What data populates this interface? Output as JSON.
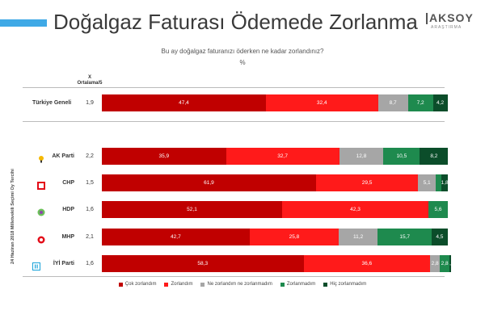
{
  "header": {
    "title": "Doğalgaz Faturası Ödemede Zorlanma",
    "logo_main": "AKSOY",
    "logo_sub": "ARAŞTIRMA"
  },
  "question": {
    "text": "Bu ay doğalgaz faturanızı öderken ne kadar zorlandınız?",
    "unit": "%"
  },
  "column_header": {
    "line1": "X",
    "line2": "Ortalama/5"
  },
  "vertical_label": "24 Haziran 2018 Milletvekili Seçimi Oy Tercihi",
  "colors": {
    "cok_zorlandim": "#c00000",
    "zorlandim": "#ff1a1a",
    "ne_ne": "#a6a6a6",
    "zorlanmadim": "#1e8a4e",
    "hic_zorlanmadim": "#0b4d2a"
  },
  "legend": [
    "Çok zorlandım",
    "Zorlandım",
    "Ne zorlandım ne zorlanmadım",
    "Zorlanmadım",
    "Hiç zorlanmadım"
  ],
  "rows": [
    {
      "label": "Türkiye Geneli",
      "mean": "1,9",
      "values": [
        "47,4",
        "32,4",
        "8,7",
        "7,2",
        "4,2"
      ]
    },
    {
      "label": "AK Parti",
      "mean": "2,2",
      "values": [
        "35,9",
        "32,7",
        "12,8",
        "10,5",
        "8,2"
      ]
    },
    {
      "label": "CHP",
      "mean": "1,5",
      "values": [
        "61,9",
        "29,5",
        "5,1",
        "",
        "1,8"
      ]
    },
    {
      "label": "HDP",
      "mean": "1,6",
      "values": [
        "52,1",
        "42,3",
        "",
        "5,6",
        ""
      ]
    },
    {
      "label": "MHP",
      "mean": "2,1",
      "values": [
        "42,7",
        "25,8",
        "11,2",
        "15,7",
        "4,5"
      ]
    },
    {
      "label": "İYİ Parti",
      "mean": "1,6",
      "values": [
        "58,3",
        "36,6",
        "2,8",
        "2,8",
        "0,4"
      ]
    }
  ],
  "chart_data": {
    "type": "bar",
    "orientation": "horizontal",
    "stacked": true,
    "title": "Doğalgaz Faturası Ödemede Zorlanma",
    "subtitle": "Bu ay doğalgaz faturanızı öderken ne kadar zorlandınız?",
    "categories": [
      "Türkiye Geneli",
      "AK Parti",
      "CHP",
      "HDP",
      "MHP",
      "İYİ Parti"
    ],
    "mean_label": "Ortalama/5",
    "means": [
      1.9,
      2.2,
      1.5,
      1.6,
      2.1,
      1.6
    ],
    "series": [
      {
        "name": "Çok zorlandım",
        "values": [
          47.4,
          35.9,
          61.9,
          52.1,
          42.7,
          58.3
        ]
      },
      {
        "name": "Zorlandım",
        "values": [
          32.4,
          32.7,
          29.5,
          42.3,
          25.8,
          36.6
        ]
      },
      {
        "name": "Ne zorlandım ne zorlanmadım",
        "values": [
          8.7,
          12.8,
          5.1,
          0,
          11.2,
          2.8
        ]
      },
      {
        "name": "Zorlanmadım",
        "values": [
          7.2,
          10.5,
          1.7,
          5.6,
          15.7,
          2.8
        ]
      },
      {
        "name": "Hiç zorlanmadım",
        "values": [
          4.2,
          8.2,
          1.8,
          0,
          4.5,
          0.4
        ]
      }
    ],
    "xlim": [
      0,
      100
    ],
    "legend_position": "bottom"
  }
}
